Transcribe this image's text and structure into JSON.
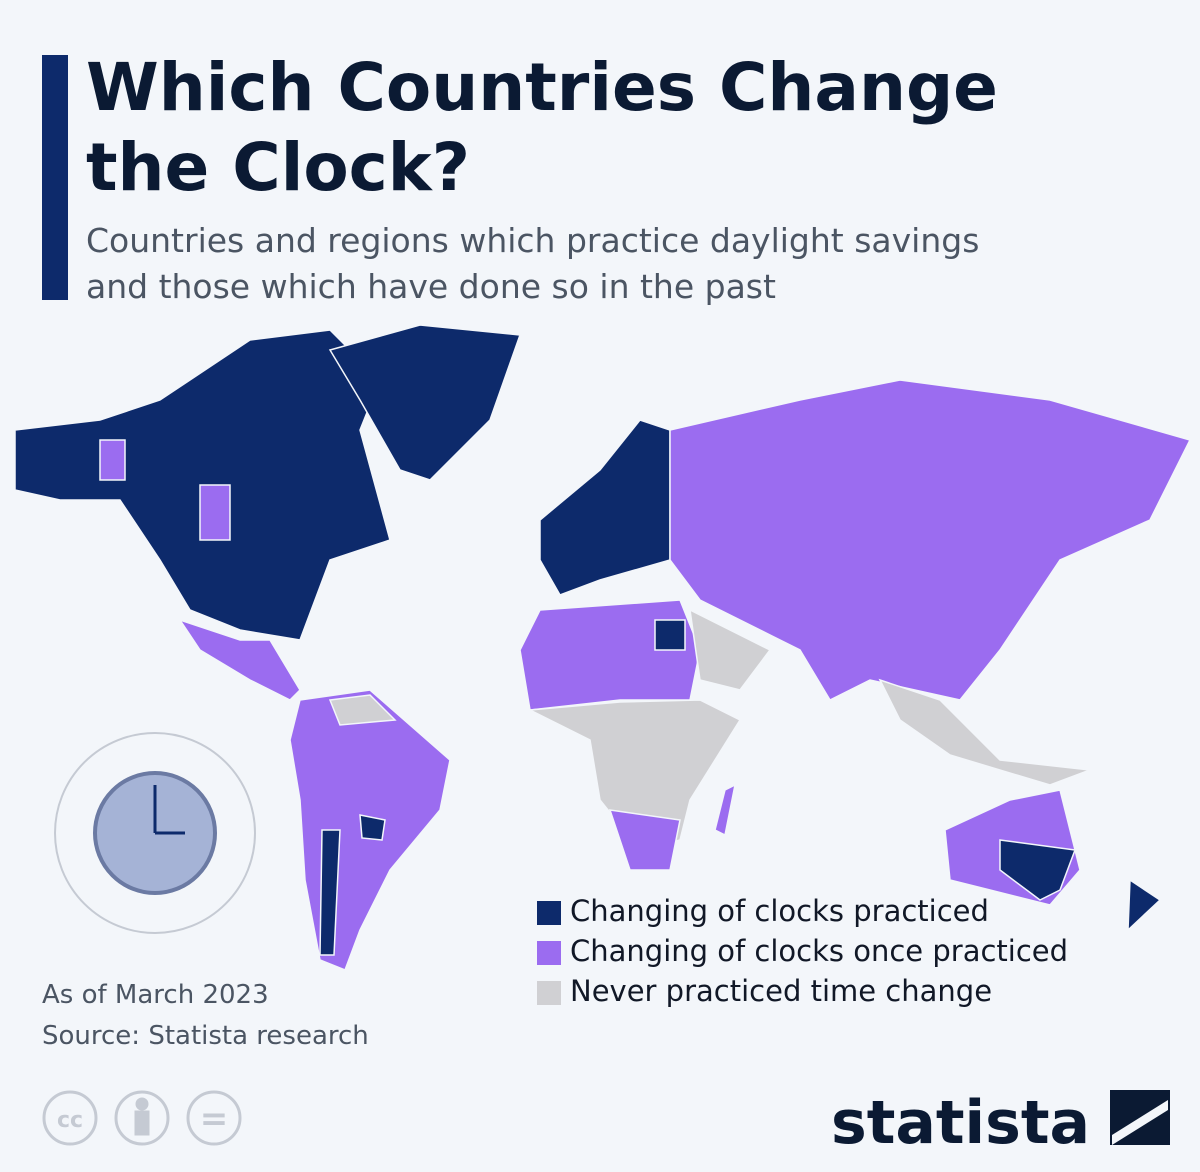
{
  "header": {
    "title_lines": [
      "Which Countries Change",
      "the Clock?"
    ],
    "subtitle_lines": [
      "Countries and regions which practice daylight savings",
      "and those which have done so in the past"
    ]
  },
  "legend": [
    {
      "label": "Changing of clocks practiced",
      "color": "#0d2a6b"
    },
    {
      "label": "Changing of clocks once practiced",
      "color": "#9b6cf0"
    },
    {
      "label": "Never practiced time change",
      "color": "#d0d0d3"
    }
  ],
  "footer": {
    "date": "As of March 2023",
    "source": "Source: Statista research",
    "logo": "statista",
    "license": [
      "cc",
      "="
    ]
  }
}
